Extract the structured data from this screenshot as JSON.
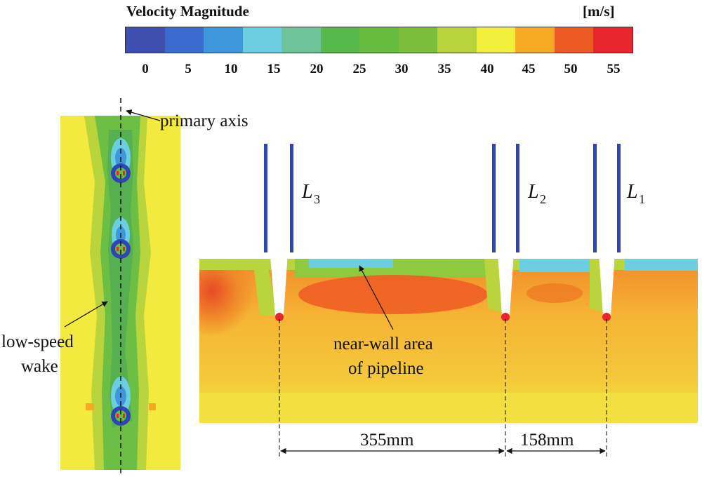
{
  "legend": {
    "title": "Velocity Magnitude",
    "unit": "[m/s]",
    "ticks": [
      "0",
      "5",
      "10",
      "15",
      "20",
      "25",
      "30",
      "35",
      "40",
      "45",
      "50",
      "55"
    ],
    "colors": [
      "#3f4fb0",
      "#3c6bd0",
      "#3f97dc",
      "#6ccfe1",
      "#6fc39a",
      "#57b84b",
      "#66bc3e",
      "#7dbd3c",
      "#b8d43a",
      "#f2ee3c",
      "#f6a923",
      "#ee5a23",
      "#e8262d"
    ]
  },
  "labels": {
    "primary_axis": "primary axis",
    "low_speed_1": "low-speed",
    "low_speed_2": "wake",
    "near_wall_1": "near-wall area",
    "near_wall_2": "of pipeline",
    "l3": "L",
    "l3_sub": "3",
    "l2": "L",
    "l2_sub": "2",
    "l1": "L",
    "l1_sub": "1",
    "dim_1": "355mm",
    "dim_2": "158mm"
  }
}
